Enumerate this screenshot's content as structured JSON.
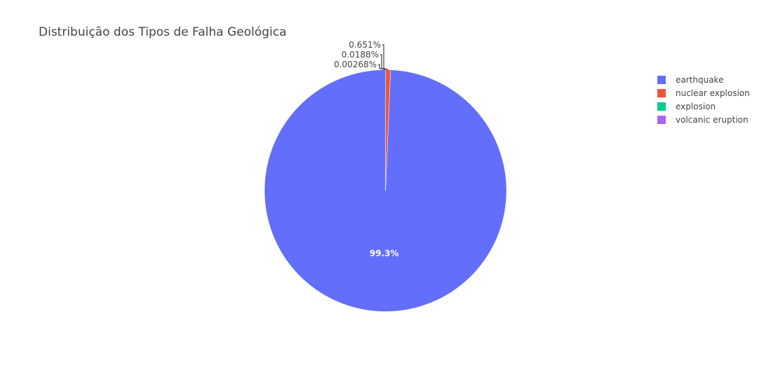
{
  "chart_data": {
    "type": "pie",
    "title": "Distribuição dos Tipos de Falha Geológica",
    "labels": [
      "earthquake",
      "nuclear explosion",
      "explosion",
      "volcanic eruption"
    ],
    "percent_labels": [
      "99.3%",
      "0.651%",
      "0.0188%",
      "0.00268%"
    ],
    "values": [
      99.327,
      0.651,
      0.0188,
      0.00268
    ],
    "colors": [
      "#636efa",
      "#EF553B",
      "#00cc96",
      "#ab63fa"
    ],
    "legend_position": "top-right"
  }
}
